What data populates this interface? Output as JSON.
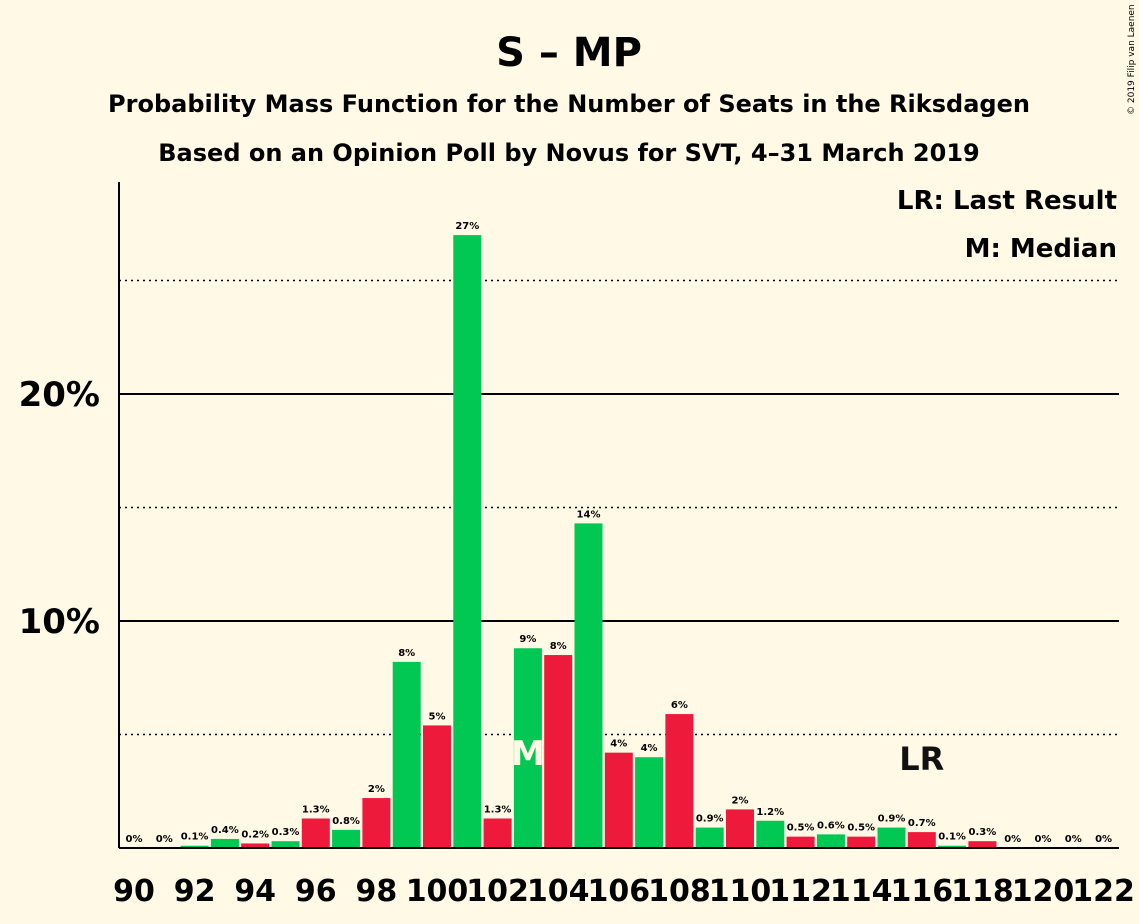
{
  "title": "S – MP",
  "subtitle1": "Probability Mass Function for the Number of Seats in the Riksdagen",
  "subtitle2": "Based on an Opinion Poll by Novus for SVT, 4–31 March 2019",
  "legend": {
    "lr": "LR: Last Result",
    "m": "M: Median"
  },
  "copyright": "© 2019 Filip van Laenen",
  "colors": {
    "green": "#00c853",
    "red": "#ee1a3b",
    "background": "#fff9e5"
  },
  "chart_data": {
    "type": "bar",
    "x": [
      90,
      91,
      92,
      93,
      94,
      95,
      96,
      97,
      98,
      99,
      100,
      101,
      102,
      103,
      104,
      105,
      106,
      107,
      108,
      109,
      110,
      111,
      112,
      113,
      114,
      115,
      116,
      117,
      118,
      119,
      120,
      121,
      122
    ],
    "values": [
      0,
      0,
      0.1,
      0.4,
      0.2,
      0.3,
      1.3,
      0.8,
      2.2,
      8.2,
      5.4,
      27,
      1.3,
      8.8,
      8.5,
      14.3,
      4.2,
      4.0,
      5.9,
      0.9,
      1.7,
      1.2,
      0.5,
      0.6,
      0.5,
      0.9,
      0.7,
      0.1,
      0.3,
      0,
      0,
      0,
      0
    ],
    "labels": [
      "0%",
      "0%",
      "0.1%",
      "0.4%",
      "0.2%",
      "0.3%",
      "1.3%",
      "0.8%",
      "2%",
      "8%",
      "5%",
      "27%",
      "1.3%",
      "9%",
      "8%",
      "14%",
      "4%",
      "4%",
      "6%",
      "0.9%",
      "2%",
      "1.2%",
      "0.5%",
      "0.6%",
      "0.5%",
      "0.9%",
      "0.7%",
      "0.1%",
      "0.3%",
      "0%",
      "0%",
      "0%",
      "0%"
    ],
    "colors": [
      "green",
      "red",
      "green",
      "green",
      "red",
      "green",
      "red",
      "green",
      "red",
      "green",
      "red",
      "green",
      "red",
      "green",
      "red",
      "green",
      "red",
      "green",
      "red",
      "green",
      "red",
      "green",
      "red",
      "green",
      "red",
      "green",
      "red",
      "green",
      "red",
      "green",
      "red",
      "green",
      "red"
    ],
    "xtick_labels": [
      "90",
      "92",
      "94",
      "96",
      "98",
      "100",
      "102",
      "104",
      "106",
      "108",
      "110",
      "112",
      "114",
      "116",
      "118",
      "120",
      "122"
    ],
    "yticks": [
      {
        "value": 10,
        "label": "10%"
      },
      {
        "value": 20,
        "label": "20%"
      }
    ],
    "dotted_lines": [
      5,
      15,
      25
    ],
    "ylim": [
      0,
      29
    ],
    "median_seat": 103,
    "median_label": "M",
    "last_result_seat": 116,
    "last_result_label": "LR"
  }
}
